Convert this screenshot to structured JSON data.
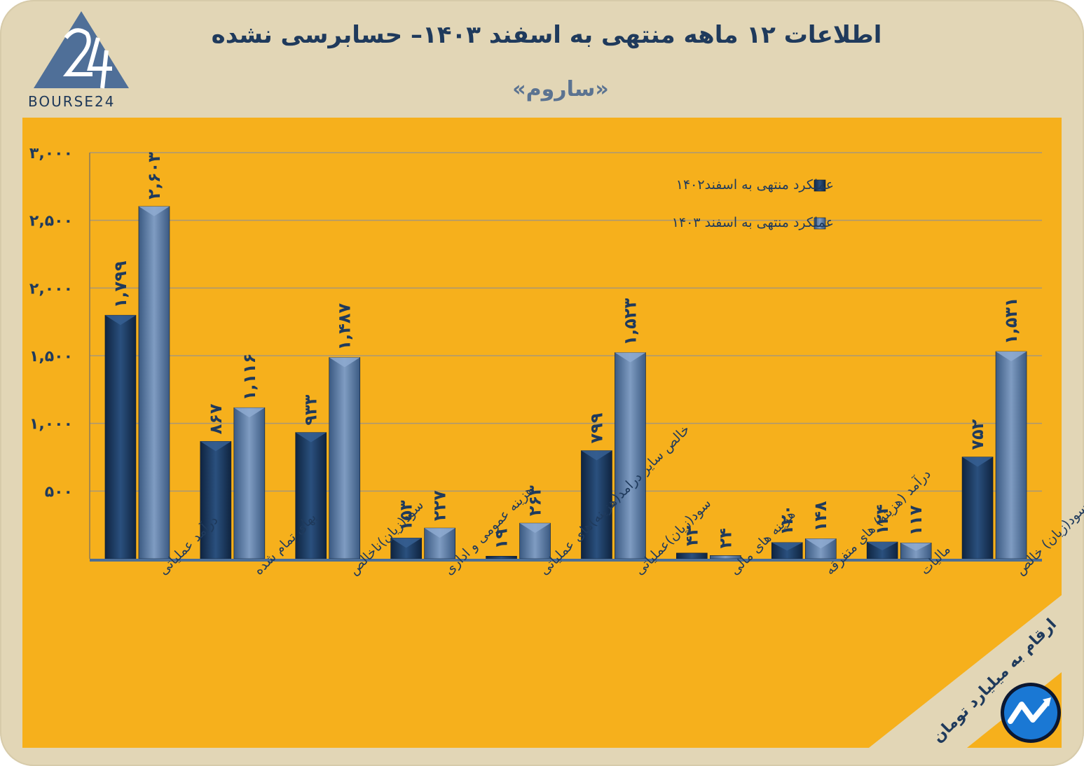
{
  "header": {
    "title": "اطلاعات ۱۲ ماهه منتهی به اسفند  ۱۴۰۳– حسابرسی نشده",
    "subtitle": "«ساروم»",
    "logo_text": "BOURSE24"
  },
  "footer": {
    "unit_note": "ارقام به میلیارد تومان"
  },
  "colors": {
    "background": "#e2d6b6",
    "panel": "#f6b01c",
    "series_2023": "#1f3f68",
    "series_2024": "#5d7ea6",
    "text": "#1f3a5c"
  },
  "chart_data": {
    "type": "bar",
    "title": "",
    "xlabel": "",
    "ylabel": "",
    "ylim": [
      0,
      3000
    ],
    "yticks": [
      500,
      1000,
      1500,
      2000,
      2500,
      3000
    ],
    "ytick_labels": [
      "۵۰۰",
      "۱,۰۰۰",
      "۱,۵۰۰",
      "۲,۰۰۰",
      "۲,۵۰۰",
      "۳,۰۰۰"
    ],
    "grid": true,
    "legend_position": "top-right",
    "categories": [
      "درآمد عملیاتی",
      "بهای تمام شده",
      "سود(زیان)ناخالص",
      "هزینه عمومی و اداری",
      "خالص سایر درامد(هزینه)های عملیاتی",
      "سود(زیان)عملیاتی",
      "هزینه های مالی",
      "درآمد (هزینه) های متفرقه",
      "مالیات",
      "سود(زیان) خالص"
    ],
    "series": [
      {
        "name": "عملکرد منتهی به اسفند۱۴۰۲",
        "values": [
          1799,
          867,
          933,
          153,
          19,
          799,
          42,
          120,
          124,
          752
        ],
        "labels": [
          "۱,۷۹۹",
          "۸۶۷",
          "۹۳۳",
          "۱۵۳",
          "۱۹",
          "۷۹۹",
          "۴۲",
          "۱۲۰",
          "۱۲۴",
          "۷۵۲"
        ]
      },
      {
        "name": "عملکرد منتهی به اسفند ۱۴۰۳",
        "values": [
          2603,
          1116,
          1487,
          227,
          263,
          1523,
          24,
          148,
          117,
          1531
        ],
        "labels": [
          "۲,۶۰۳",
          "۱,۱۱۶",
          "۱,۴۸۷",
          "۲۲۷",
          "۲۶۳",
          "۱,۵۲۳",
          "۲۴",
          "۱۴۸",
          "۱۱۷",
          "۱,۵۳۱"
        ]
      }
    ]
  }
}
